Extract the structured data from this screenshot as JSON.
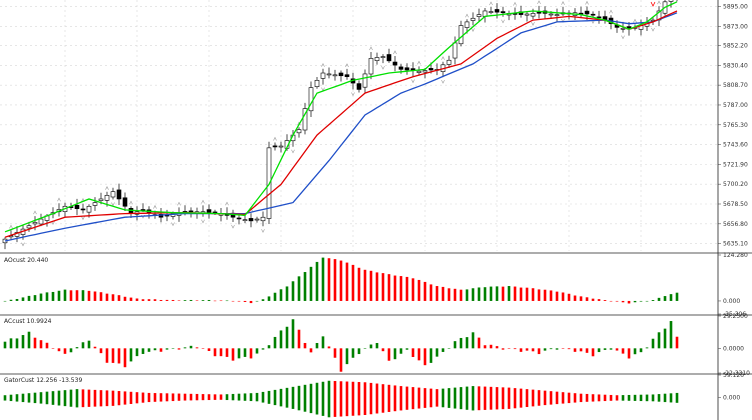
{
  "colors": {
    "bull": "#008000",
    "bear": "#ff0000",
    "ma_fast": "#00e000",
    "ma_mid": "#e00000",
    "ma_slow": "#1f4fc8",
    "grid": "#d8d8d8",
    "background": "#ffffff"
  },
  "main_chart": {
    "price_axis_labels": [
      "5895.00",
      "5873.00",
      "5852.20",
      "5830.40",
      "5808.70",
      "5787.00",
      "5765.30",
      "5743.60",
      "5721.90",
      "5700.20",
      "5678.50",
      "5656.80",
      "5635.10"
    ],
    "ylim": [
      5627,
      5902
    ]
  },
  "indicators": [
    {
      "name": "indicator-ao",
      "label": "AOcust 20.440",
      "axis_labels": [
        "124.280",
        "0.000",
        "-35.306"
      ],
      "ylim": [
        -35.306,
        124.28
      ]
    },
    {
      "name": "indicator-ac",
      "label": "ACcust 10.9924",
      "axis_labels": [
        "29.2500",
        "0.0000",
        "-22.3310"
      ],
      "ylim": [
        -22.331,
        29.25
      ]
    },
    {
      "name": "indicator-gator",
      "label": "GatorCust 12.256 -13.539",
      "axis_labels": [
        "59.126",
        "0.000"
      ],
      "ylim": [
        -59.126,
        59.126
      ]
    }
  ],
  "chart_data": {
    "type": "line",
    "title": "",
    "xlabel": "",
    "ylabel": "",
    "anchors": {
      "close": [
        [
          0,
          5640
        ],
        [
          6,
          5662
        ],
        [
          10,
          5676
        ],
        [
          13,
          5672
        ],
        [
          16,
          5684
        ],
        [
          18,
          5692
        ],
        [
          21,
          5668
        ],
        [
          23,
          5672
        ],
        [
          26,
          5664
        ],
        [
          28,
          5668
        ],
        [
          31,
          5670
        ],
        [
          33,
          5670
        ],
        [
          36,
          5668
        ],
        [
          38,
          5664
        ],
        [
          41,
          5660
        ],
        [
          43,
          5664
        ],
        [
          44,
          5740
        ],
        [
          46,
          5742
        ],
        [
          49,
          5760
        ],
        [
          51,
          5806
        ],
        [
          53,
          5822
        ],
        [
          57,
          5818
        ],
        [
          59,
          5804
        ],
        [
          61,
          5838
        ],
        [
          63,
          5840
        ],
        [
          66,
          5826
        ],
        [
          69,
          5824
        ],
        [
          72,
          5826
        ],
        [
          74,
          5836
        ],
        [
          76,
          5874
        ],
        [
          78,
          5882
        ],
        [
          80,
          5890
        ],
        [
          83,
          5888
        ],
        [
          86,
          5886
        ],
        [
          89,
          5888
        ],
        [
          92,
          5886
        ],
        [
          95,
          5888
        ],
        [
          98,
          5886
        ],
        [
          100,
          5880
        ],
        [
          102,
          5872
        ],
        [
          104,
          5870
        ],
        [
          106,
          5874
        ],
        [
          108,
          5880
        ],
        [
          110,
          5900
        ],
        [
          112,
          5905
        ]
      ],
      "ma_slow": [
        [
          0,
          5638
        ],
        [
          10,
          5652
        ],
        [
          20,
          5664
        ],
        [
          30,
          5668
        ],
        [
          40,
          5668
        ],
        [
          48,
          5680
        ],
        [
          54,
          5726
        ],
        [
          60,
          5776
        ],
        [
          66,
          5800
        ],
        [
          70,
          5810
        ],
        [
          78,
          5832
        ],
        [
          86,
          5866
        ],
        [
          92,
          5878
        ],
        [
          100,
          5880
        ],
        [
          104,
          5876
        ],
        [
          108,
          5878
        ],
        [
          112,
          5888
        ]
      ],
      "ma_mid": [
        [
          0,
          5642
        ],
        [
          10,
          5664
        ],
        [
          20,
          5668
        ],
        [
          30,
          5669
        ],
        [
          40,
          5667
        ],
        [
          46,
          5700
        ],
        [
          52,
          5754
        ],
        [
          60,
          5800
        ],
        [
          68,
          5818
        ],
        [
          76,
          5832
        ],
        [
          82,
          5860
        ],
        [
          88,
          5880
        ],
        [
          94,
          5884
        ],
        [
          100,
          5880
        ],
        [
          104,
          5870
        ],
        [
          108,
          5878
        ],
        [
          112,
          5890
        ]
      ],
      "ma_fast": [
        [
          0,
          5648
        ],
        [
          8,
          5668
        ],
        [
          14,
          5684
        ],
        [
          20,
          5672
        ],
        [
          28,
          5669
        ],
        [
          36,
          5668
        ],
        [
          40,
          5666
        ],
        [
          44,
          5700
        ],
        [
          48,
          5754
        ],
        [
          52,
          5800
        ],
        [
          58,
          5814
        ],
        [
          64,
          5822
        ],
        [
          70,
          5826
        ],
        [
          74,
          5850
        ],
        [
          80,
          5884
        ],
        [
          88,
          5890
        ],
        [
          96,
          5886
        ],
        [
          100,
          5880
        ],
        [
          104,
          5870
        ],
        [
          107,
          5878
        ],
        [
          110,
          5894
        ],
        [
          112,
          5900
        ]
      ],
      "ao": [
        [
          0,
          -1
        ],
        [
          6,
          20
        ],
        [
          10,
          30
        ],
        [
          14,
          28
        ],
        [
          18,
          18
        ],
        [
          22,
          6
        ],
        [
          28,
          2
        ],
        [
          34,
          2
        ],
        [
          38,
          0
        ],
        [
          41,
          -5
        ],
        [
          43,
          4
        ],
        [
          47,
          40
        ],
        [
          51,
          92
        ],
        [
          53,
          118
        ],
        [
          56,
          110
        ],
        [
          60,
          84
        ],
        [
          64,
          72
        ],
        [
          68,
          62
        ],
        [
          72,
          40
        ],
        [
          76,
          30
        ],
        [
          80,
          38
        ],
        [
          84,
          40
        ],
        [
          88,
          34
        ],
        [
          92,
          26
        ],
        [
          96,
          12
        ],
        [
          100,
          2
        ],
        [
          104,
          -6
        ],
        [
          108,
          2
        ],
        [
          110,
          14
        ],
        [
          112,
          22
        ]
      ],
      "ac": [
        [
          0,
          6
        ],
        [
          4,
          14
        ],
        [
          7,
          4
        ],
        [
          10,
          -6
        ],
        [
          14,
          8
        ],
        [
          17,
          -12
        ],
        [
          20,
          -16
        ],
        [
          23,
          -4
        ],
        [
          26,
          -2
        ],
        [
          29,
          0
        ],
        [
          32,
          2
        ],
        [
          35,
          -6
        ],
        [
          38,
          -10
        ],
        [
          41,
          -8
        ],
        [
          43,
          -2
        ],
        [
          45,
          10
        ],
        [
          48,
          26
        ],
        [
          51,
          -4
        ],
        [
          53,
          12
        ],
        [
          56,
          -20
        ],
        [
          59,
          -4
        ],
        [
          62,
          6
        ],
        [
          64,
          -12
        ],
        [
          67,
          -2
        ],
        [
          70,
          -16
        ],
        [
          73,
          -4
        ],
        [
          75,
          6
        ],
        [
          78,
          14
        ],
        [
          80,
          4
        ],
        [
          83,
          0
        ],
        [
          86,
          -2
        ],
        [
          89,
          -4
        ],
        [
          92,
          0
        ],
        [
          95,
          -2
        ],
        [
          98,
          -6
        ],
        [
          101,
          0
        ],
        [
          104,
          -8
        ],
        [
          106,
          -4
        ],
        [
          109,
          14
        ],
        [
          111,
          24
        ],
        [
          112,
          10
        ]
      ],
      "gator_upper": [
        [
          0,
          6
        ],
        [
          6,
          14
        ],
        [
          12,
          22
        ],
        [
          18,
          18
        ],
        [
          24,
          12
        ],
        [
          30,
          10
        ],
        [
          36,
          8
        ],
        [
          42,
          12
        ],
        [
          48,
          28
        ],
        [
          54,
          44
        ],
        [
          60,
          40
        ],
        [
          66,
          30
        ],
        [
          72,
          22
        ],
        [
          78,
          30
        ],
        [
          84,
          26
        ],
        [
          90,
          18
        ],
        [
          96,
          10
        ],
        [
          102,
          6
        ],
        [
          108,
          8
        ],
        [
          112,
          12
        ]
      ],
      "gator_lower": [
        [
          0,
          -8
        ],
        [
          6,
          -16
        ],
        [
          12,
          -26
        ],
        [
          18,
          -22
        ],
        [
          24,
          -12
        ],
        [
          30,
          -8
        ],
        [
          36,
          -6
        ],
        [
          42,
          -10
        ],
        [
          48,
          -30
        ],
        [
          54,
          -52
        ],
        [
          60,
          -46
        ],
        [
          66,
          -34
        ],
        [
          72,
          -24
        ],
        [
          78,
          -34
        ],
        [
          84,
          -30
        ],
        [
          90,
          -20
        ],
        [
          96,
          -12
        ],
        [
          102,
          -8
        ],
        [
          108,
          -10
        ],
        [
          112,
          -14
        ]
      ]
    }
  }
}
